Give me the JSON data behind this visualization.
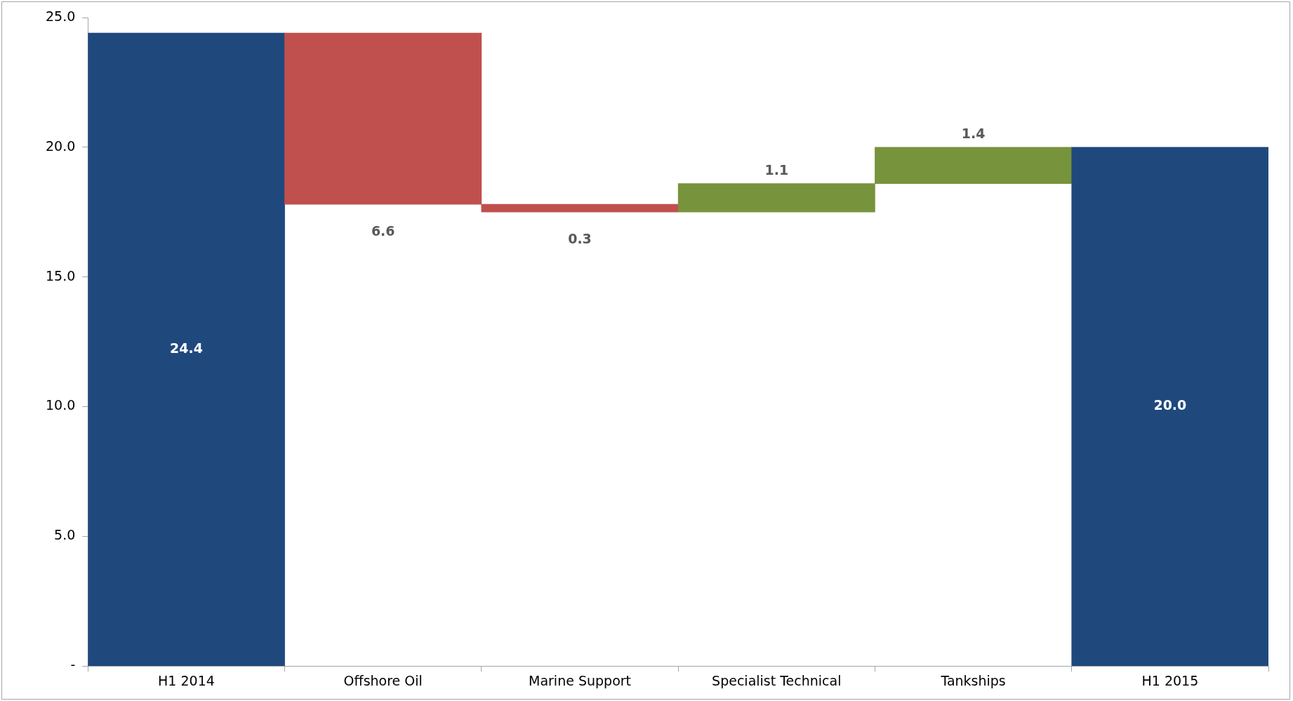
{
  "chart_data": {
    "type": "bar",
    "categories": [
      "H1 2014",
      "Offshore Oil",
      "Marine Support",
      "Specialist Technical",
      "Tankships",
      "H1 2015"
    ],
    "values": [
      24.4,
      6.6,
      0.3,
      1.1,
      1.4,
      20.0
    ],
    "base": [
      0,
      17.8,
      17.5,
      17.5,
      18.6,
      0
    ],
    "value_labels": [
      "24.4",
      "6.6",
      "0.3",
      "1.1",
      "1.4",
      "20.0"
    ],
    "colors": [
      "#1f497d",
      "#c0504d",
      "#c0504d",
      "#77933c",
      "#77933c",
      "#1f497d"
    ],
    "ylim": [
      0,
      25
    ],
    "yticks": [
      {
        "value": 0,
        "label": "-"
      },
      {
        "value": 5,
        "label": "5.0"
      },
      {
        "value": 10,
        "label": "10.0"
      },
      {
        "value": 15,
        "label": "15.0"
      },
      {
        "value": 20,
        "label": "20.0"
      },
      {
        "value": 25,
        "label": "25.0"
      }
    ],
    "grid": false,
    "legend": false
  }
}
